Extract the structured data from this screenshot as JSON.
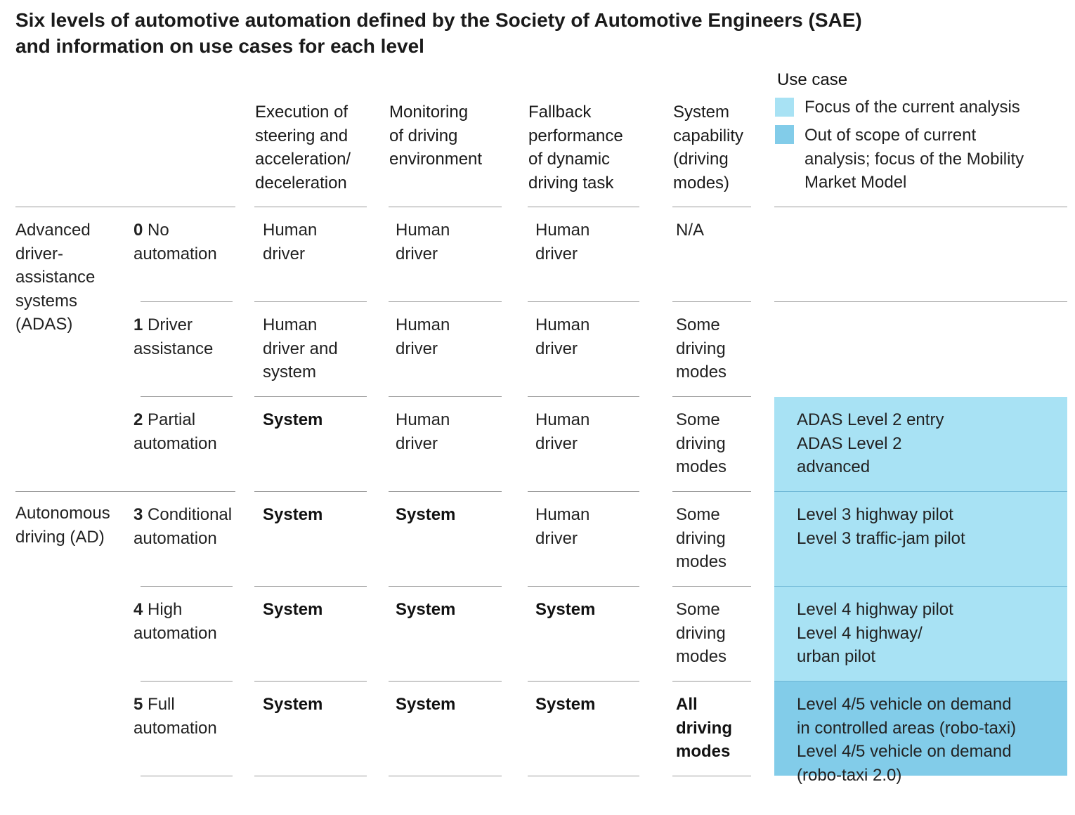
{
  "title": "Six levels of automotive automation defined by the Society of Automotive Engineers (SAE)\nand information on use cases for each level",
  "columns": {
    "execution": "Execution of\nsteering and\nacceleration/\ndeceleration",
    "monitoring": "Monitoring\nof driving\nenvironment",
    "fallback": "Fallback\nperformance\nof dynamic\ndriving task",
    "capability": "System\ncapability\n(driving\nmodes)"
  },
  "legend": {
    "title": "Use case",
    "items": [
      {
        "label": "Focus of the current analysis",
        "color": "#a8e2f4"
      },
      {
        "label": "Out of scope of current\nanalysis; focus of the Mobility\nMarket Model",
        "color": "#82cce9"
      }
    ]
  },
  "groups": [
    {
      "label": "Advanced\ndriver-\nassistance\nsystems\n(ADAS)"
    },
    {
      "label": "Autonomous\ndriving (AD)"
    }
  ],
  "chart_data": {
    "type": "table",
    "title": "Six levels of automotive automation defined by the Society of Automotive Engineers (SAE) and information on use cases for each level",
    "headers": [
      "",
      "",
      "Execution of steering and acceleration/ deceleration",
      "Monitoring of driving environment",
      "Fallback performance of dynamic driving task",
      "System capability (driving modes)",
      "Use case"
    ],
    "rows": [
      {
        "group": "Advanced driver-assistance systems (ADAS)",
        "num": "0",
        "level": "No\nautomation",
        "execution": "Human\ndriver",
        "monitoring": "Human\ndriver",
        "fallback": "Human\ndriver",
        "capability": "N/A",
        "use_case": "",
        "scope": "none",
        "bold": {
          "execution": false,
          "monitoring": false,
          "fallback": false,
          "capability": false
        }
      },
      {
        "group": "Advanced driver-assistance systems (ADAS)",
        "num": "1",
        "level": "Driver\nassistance",
        "execution": "Human\ndriver and\nsystem",
        "monitoring": "Human\ndriver",
        "fallback": "Human\ndriver",
        "capability": "Some\ndriving\nmodes",
        "use_case": "",
        "scope": "none",
        "bold": {
          "execution": false,
          "monitoring": false,
          "fallback": false,
          "capability": false
        }
      },
      {
        "group": "Advanced driver-assistance systems (ADAS)",
        "num": "2",
        "level": "Partial\nautomation",
        "execution": "System",
        "monitoring": "Human\ndriver",
        "fallback": "Human\ndriver",
        "capability": "Some\ndriving\nmodes",
        "use_case": "ADAS Level 2 entry\nADAS Level 2\nadvanced",
        "scope": "focus",
        "bold": {
          "execution": true,
          "monitoring": false,
          "fallback": false,
          "capability": false
        }
      },
      {
        "group": "Autonomous driving (AD)",
        "num": "3",
        "level": "Conditional\nautomation",
        "execution": "System",
        "monitoring": "System",
        "fallback": "Human\ndriver",
        "capability": "Some\ndriving\nmodes",
        "use_case": "Level 3 highway pilot\nLevel 3 traffic-jam pilot",
        "scope": "focus",
        "bold": {
          "execution": true,
          "monitoring": true,
          "fallback": false,
          "capability": false
        }
      },
      {
        "group": "Autonomous driving (AD)",
        "num": "4",
        "level": "High\nautomation",
        "execution": "System",
        "monitoring": "System",
        "fallback": "System",
        "capability": "Some\ndriving\nmodes",
        "use_case": "Level 4 highway pilot\nLevel 4 highway/\nurban pilot",
        "scope": "focus",
        "bold": {
          "execution": true,
          "monitoring": true,
          "fallback": true,
          "capability": false
        }
      },
      {
        "group": "Autonomous driving (AD)",
        "num": "5",
        "level": "Full\nautomation",
        "execution": "System",
        "monitoring": "System",
        "fallback": "System",
        "capability": "All\ndriving\nmodes",
        "use_case": "Level 4/5 vehicle on demand\nin controlled areas (robo-taxi)\nLevel 4/5 vehicle on demand\n(robo-taxi 2.0)",
        "scope": "out",
        "bold": {
          "execution": true,
          "monitoring": true,
          "fallback": true,
          "capability": true
        }
      }
    ]
  }
}
